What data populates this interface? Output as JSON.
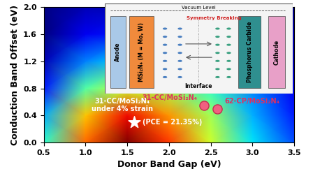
{
  "chart_data": {
    "type": "heatmap",
    "xlabel": "Donor Band Gap (eV)",
    "ylabel": "Conduction Band Offset (eV)",
    "x": [
      0.5,
      1.0,
      1.5,
      2.0,
      2.5,
      3.0,
      3.5
    ],
    "y": [
      0.0,
      0.4,
      0.8,
      1.2,
      1.6,
      2.0
    ],
    "cells": [
      [
        8,
        16,
        20,
        17,
        12,
        7,
        4
      ],
      [
        6,
        14,
        18,
        15,
        11,
        6,
        3
      ],
      [
        3,
        9,
        12,
        11,
        8,
        5,
        2
      ],
      [
        1,
        5,
        7,
        7,
        5,
        3,
        1
      ],
      [
        0,
        2,
        3,
        3,
        3,
        2,
        1
      ],
      [
        0,
        1,
        1,
        1,
        1,
        1,
        0
      ]
    ],
    "xlim": [
      0.5,
      3.5
    ],
    "ylim": [
      0.0,
      2.0
    ],
    "xticks": [
      0.5,
      1.0,
      1.5,
      2.0,
      2.5,
      3.0,
      3.5
    ],
    "yticks": [
      0.0,
      0.4,
      0.8,
      1.2,
      1.6,
      2.0
    ],
    "points": [
      {
        "name": "31-CC/MoSi₂N₄",
        "x": 2.42,
        "y": 0.55,
        "color": "#f06080",
        "marker": "circle"
      },
      {
        "name": "62-CP/MoSi₂N₄",
        "x": 2.58,
        "y": 0.5,
        "color": "#f06080",
        "marker": "circle"
      }
    ],
    "highlight": {
      "name": "31-CC/MoSi₂N₄\nunder 4% strain",
      "label": "(PCE = 21.35%)",
      "x": 1.58,
      "y": 0.3,
      "color": "#ffffff",
      "marker": "star"
    }
  },
  "inset": {
    "vacuum_level": "Vacuum Level",
    "anode": "Anode",
    "donor": "MSi₂N₄ (M = Mo, W)",
    "interface": "Interface",
    "symmetry": "Symmetry Breaking",
    "acceptor": "Phosphorus Carbide",
    "cathode": "Cathode"
  }
}
